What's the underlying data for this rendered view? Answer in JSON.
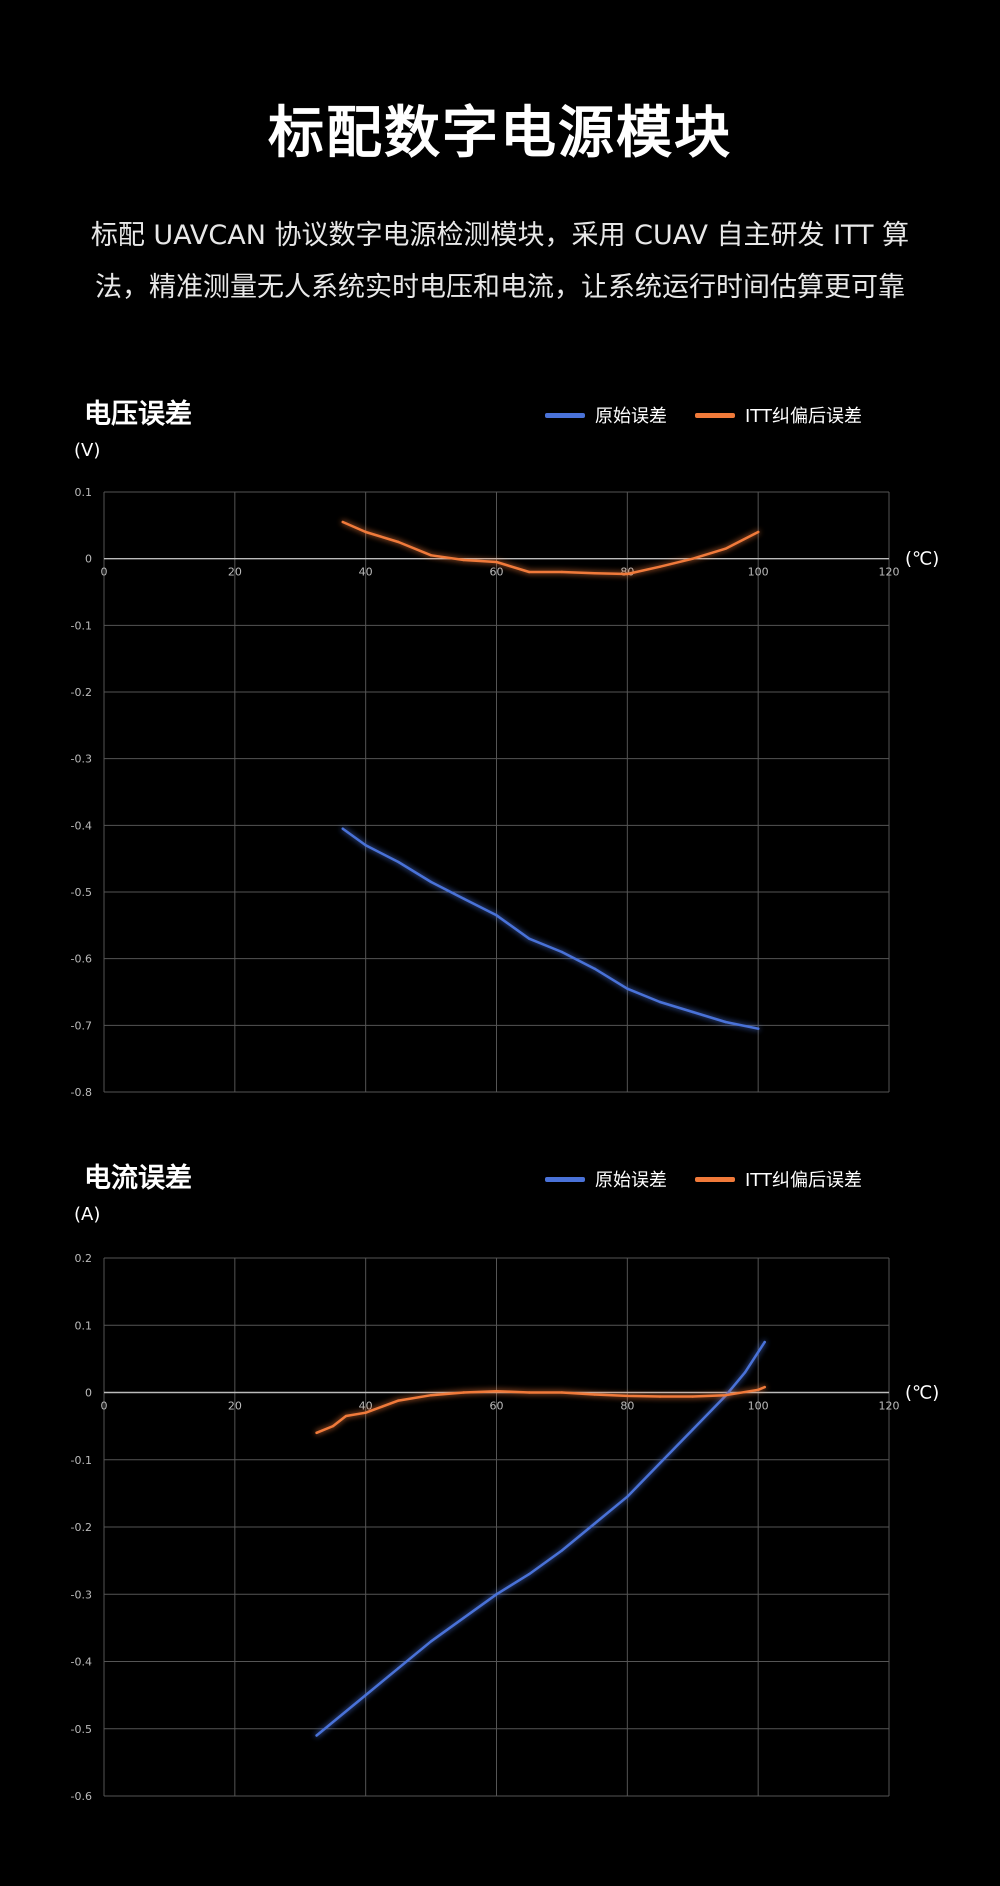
{
  "page": {
    "title": "标配数字电源模块",
    "description_line1": "标配 UAVCAN 协议数字电源检测模块，采用 CUAV 自主研发 ITT 算",
    "description_line2": "法，精准测量无人系统实时电压和电流，让系统运行时间估算更可靠"
  },
  "colors": {
    "raw": "#4a72d8",
    "itt": "#f07a3a",
    "grid": "#555555",
    "axis": "#bbbbbb"
  },
  "chart_data": [
    {
      "type": "line",
      "title": "电压误差",
      "ylabel": "(V)",
      "xlabel": "(℃)",
      "xlim": [
        0,
        120
      ],
      "ylim": [
        -0.8,
        0.1
      ],
      "xticks": [
        0,
        20,
        40,
        60,
        80,
        100,
        120
      ],
      "yticks": [
        0.1,
        0,
        -0.1,
        -0.2,
        -0.3,
        -0.4,
        -0.5,
        -0.6,
        -0.7,
        -0.8
      ],
      "grid": true,
      "legend_position": "top-right",
      "series": [
        {
          "name": "原始误差",
          "color_key": "raw",
          "x": [
            36.5,
            40,
            45,
            50,
            55,
            60,
            65,
            70,
            75,
            80,
            85,
            90,
            95,
            100
          ],
          "y": [
            -0.405,
            -0.43,
            -0.455,
            -0.485,
            -0.51,
            -0.535,
            -0.57,
            -0.59,
            -0.615,
            -0.645,
            -0.665,
            -0.68,
            -0.695,
            -0.705
          ]
        },
        {
          "name": "ITT纠偏后误差",
          "color_key": "itt",
          "x": [
            36.5,
            40,
            45,
            50,
            55,
            60,
            65,
            70,
            75,
            80,
            85,
            90,
            95,
            100
          ],
          "y": [
            0.055,
            0.04,
            0.025,
            0.005,
            -0.002,
            -0.005,
            -0.02,
            -0.02,
            -0.022,
            -0.023,
            -0.012,
            0.0,
            0.015,
            0.04
          ]
        }
      ]
    },
    {
      "type": "line",
      "title": "电流误差",
      "ylabel": "(A)",
      "xlabel": "(℃)",
      "xlim": [
        0,
        120
      ],
      "ylim": [
        -0.6,
        0.2
      ],
      "xticks": [
        0,
        20,
        40,
        60,
        80,
        100,
        120
      ],
      "yticks": [
        0.2,
        0.1,
        0,
        -0.1,
        -0.2,
        -0.3,
        -0.4,
        -0.5,
        -0.6
      ],
      "grid": true,
      "legend_position": "top-right",
      "series": [
        {
          "name": "原始误差",
          "color_key": "raw",
          "x": [
            32.5,
            35,
            40,
            45,
            50,
            55,
            60,
            65,
            70,
            75,
            80,
            85,
            90,
            95,
            98,
            101
          ],
          "y": [
            -0.51,
            -0.49,
            -0.45,
            -0.41,
            -0.37,
            -0.335,
            -0.3,
            -0.27,
            -0.235,
            -0.195,
            -0.155,
            -0.105,
            -0.055,
            -0.005,
            0.03,
            0.075
          ]
        },
        {
          "name": "ITT纠偏后误差",
          "color_key": "itt",
          "x": [
            32.5,
            35,
            37,
            40,
            45,
            50,
            55,
            60,
            65,
            70,
            75,
            80,
            85,
            90,
            95,
            100,
            101
          ],
          "y": [
            -0.06,
            -0.05,
            -0.035,
            -0.03,
            -0.012,
            -0.004,
            0.0,
            0.002,
            0.0,
            0.0,
            -0.003,
            -0.005,
            -0.006,
            -0.006,
            -0.004,
            0.004,
            0.008
          ]
        }
      ]
    }
  ]
}
